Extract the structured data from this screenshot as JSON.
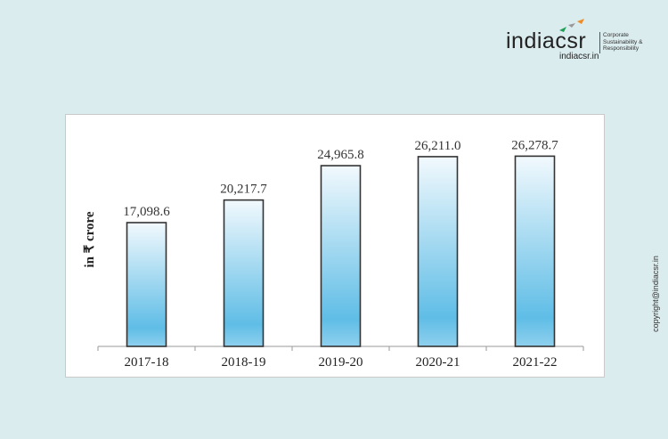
{
  "branding": {
    "logo_text": "indiacsr",
    "logo_tagline": [
      "Corporate",
      "Sustainability &",
      "Responsibility"
    ],
    "url": "indiacsr.in",
    "copyright": "copyright@indiacsr.in"
  },
  "colors": {
    "background": "#dbecef",
    "bar_top": "#f2f9fd",
    "bar_bottom": "#5fbde6",
    "bar_stroke": "#333333"
  },
  "chart_data": {
    "type": "bar",
    "categories": [
      "2017-18",
      "2018-19",
      "2019-20",
      "2020-21",
      "2021-22"
    ],
    "values": [
      17098.6,
      20217.7,
      24965.8,
      26211.0,
      26278.7
    ],
    "data_labels": [
      "17,098.6",
      "20,217.7",
      "24,965.8",
      "26,211.0",
      "26,278.7"
    ],
    "title": "",
    "xlabel": "",
    "ylabel": "in ₹ crore",
    "ylim": [
      0,
      30000
    ],
    "grid": false,
    "legend": "none"
  }
}
